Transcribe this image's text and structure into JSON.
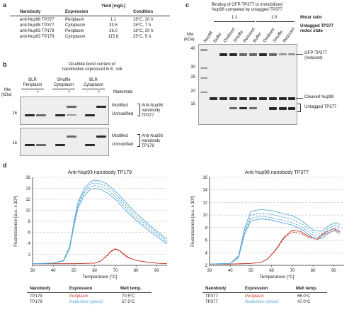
{
  "panel_a": {
    "label": "a",
    "headers": [
      "Nanobody",
      "Expression",
      "Yield [mg/L]",
      "Condition"
    ],
    "rows": [
      [
        "anti-Nup98 TP377",
        "Periplasm",
        "1.1",
        "18°C, 20 h"
      ],
      [
        "anti-Nup98 TP377",
        "Cytoplasm",
        "33.5",
        "25°C, 7 h"
      ],
      [
        "anti-Nup93 TP179",
        "Periplasm",
        "26.0",
        "18°C, 20 h"
      ],
      [
        "anti-Nup93 TP179",
        "Cytoplasm",
        "115.8",
        "25°C, 5 h"
      ]
    ]
  },
  "panel_b": {
    "label": "b",
    "title_line1": "Disulfide bond content of",
    "title_line2": "nanobodies expressed in E. coli",
    "groups": [
      {
        "line1": "BLR",
        "line2": "Periplasm"
      },
      {
        "line1": "SHuffle",
        "line2": "Cytoplasm"
      },
      {
        "line1": "BLR",
        "line2": "Cytoplasm"
      }
    ],
    "minus": "-",
    "plus": "+",
    "maleimide": "Maleimide",
    "mw_label": "Mw",
    "mw_unit": "(kDa)",
    "mw_marker_top": "16",
    "mw_marker_bottom": "16",
    "modified": "Modified",
    "unmodified": "Unmodified",
    "top_right_label": [
      "Anti-Nup98",
      "nanobody",
      "TP377"
    ],
    "bottom_right_label": [
      "Anti-Nup93",
      "nanobody",
      "TP179"
    ]
  },
  "panel_c": {
    "label": "c",
    "title_line1": "Binding of GFP-TP377 to immobilized",
    "title_line2": "Nup98 competed by untagged TP377",
    "ratio_1": "1:1",
    "ratio_2": "1:5",
    "molar_ratio": "Molar ratio",
    "untagged_state_line1": "Untagged TP377",
    "untagged_state_line2": "redox state",
    "lanes": [
      "Nup98",
      "Buffer",
      "Oxidized",
      "SHuffle",
      "Reduced",
      "Buffer",
      "Oxidized",
      "SHuffle",
      "Reduced"
    ],
    "mw_label": "Mw",
    "mw_unit": "(kDa)",
    "mw_markers": [
      "40",
      "30",
      "25",
      "20",
      "15"
    ],
    "band_gfp_line1": "GFP-TP377",
    "band_gfp_line2": "(reduced)",
    "band_nup98": "Cleaved Nup98",
    "band_untagged": "Untagged TP377"
  },
  "panel_d": {
    "label": "d",
    "left_table": {
      "headers": [
        "Nanobody",
        "Expression",
        "Melt temp."
      ],
      "rows": [
        {
          "nanobody": "TP179",
          "expression": "Periplasm",
          "melt": "70.5°C"
        },
        {
          "nanobody": "TP179",
          "expression": "Reductive cytosol",
          "melt": "57.5°C"
        }
      ]
    },
    "right_table": {
      "headers": [
        "Nanobody",
        "Expression",
        "Melt temp."
      ],
      "rows": [
        {
          "nanobody": "TP377",
          "expression": "Periplasm",
          "melt": "66.0°C"
        },
        {
          "nanobody": "TP377",
          "expression": "Reductive cytosol",
          "melt": "47.0°C"
        }
      ]
    }
  },
  "colors": {
    "periplasm": "#c0392b",
    "cytosol": "#5aa7d6"
  },
  "chart_data": [
    {
      "type": "line",
      "title": "Anti-Nup93 nanobody TP179",
      "xlabel": "Temperature [°C]",
      "ylabel": "Fluorescence [a.u. x 10³]",
      "xlim": [
        30,
        95
      ],
      "ylim": [
        0,
        16
      ],
      "xticks": [
        30,
        40,
        50,
        60,
        70,
        80,
        90
      ],
      "yticks": [
        2,
        4,
        6,
        8,
        10,
        12,
        14,
        16
      ],
      "grid": true,
      "series": [
        {
          "color": "#c0392b",
          "dashed": false,
          "x": [
            30,
            40,
            50,
            60,
            63,
            66,
            68,
            70,
            72,
            74,
            76,
            80,
            85,
            90,
            95
          ],
          "y": [
            0.3,
            0.3,
            0.3,
            0.4,
            0.8,
            1.8,
            2.6,
            3.0,
            2.7,
            2.1,
            1.5,
            0.9,
            0.6,
            0.4,
            0.3
          ]
        },
        {
          "color": "#c0392b",
          "dashed": true,
          "x": [
            30,
            40,
            50,
            60,
            63,
            66,
            68,
            70,
            72,
            74,
            76,
            80,
            85,
            90,
            95
          ],
          "y": [
            0.3,
            0.3,
            0.3,
            0.4,
            0.8,
            1.7,
            2.5,
            2.9,
            2.6,
            2.0,
            1.4,
            0.9,
            0.6,
            0.4,
            0.3
          ]
        },
        {
          "color": "#5aa7d6",
          "dashed": false,
          "x": [
            30,
            40,
            45,
            48,
            50,
            52,
            55,
            58,
            60,
            63,
            66,
            70,
            75,
            80,
            85,
            90,
            95
          ],
          "y": [
            0.3,
            0.4,
            0.9,
            3.5,
            8.0,
            11.5,
            14.0,
            15.2,
            15.5,
            15.3,
            14.8,
            13.5,
            11.5,
            9.5,
            7.8,
            6.2,
            4.8
          ]
        },
        {
          "color": "#5aa7d6",
          "dashed": true,
          "x": [
            30,
            40,
            45,
            48,
            50,
            52,
            55,
            58,
            60,
            63,
            66,
            70,
            75,
            80,
            85,
            90,
            95
          ],
          "y": [
            0.3,
            0.4,
            0.9,
            3.4,
            7.8,
            11.2,
            13.6,
            14.8,
            15.0,
            14.8,
            14.3,
            13.0,
            11.0,
            9.0,
            7.4,
            5.9,
            4.5
          ]
        },
        {
          "color": "#5aa7d6",
          "dashed": true,
          "x": [
            30,
            40,
            45,
            48,
            50,
            52,
            55,
            58,
            60,
            63,
            66,
            70,
            75,
            80,
            85,
            90,
            95
          ],
          "y": [
            0.3,
            0.4,
            0.9,
            3.3,
            7.5,
            10.8,
            13.2,
            14.3,
            14.5,
            14.3,
            13.8,
            12.5,
            10.5,
            8.6,
            7.0,
            5.6,
            4.2
          ]
        },
        {
          "color": "#5aa7d6",
          "dashed": false,
          "x": [
            30,
            40,
            45,
            48,
            50,
            52,
            55,
            58,
            60,
            63,
            66,
            70,
            75,
            80,
            85,
            90,
            95
          ],
          "y": [
            0.3,
            0.4,
            0.8,
            3.1,
            7.2,
            10.4,
            12.7,
            13.8,
            14.0,
            13.8,
            13.2,
            12.0,
            10.0,
            8.2,
            6.6,
            5.2,
            3.9
          ]
        }
      ]
    },
    {
      "type": "line",
      "title": "Anti-Nup98 nanobody TP377",
      "xlabel": "Temperature [°C]",
      "ylabel": "Fluorescence [a.u. x 10³]",
      "xlim": [
        30,
        95
      ],
      "ylim": [
        2,
        16
      ],
      "xticks": [
        30,
        40,
        50,
        60,
        70,
        80,
        90
      ],
      "yticks": [
        2,
        4,
        6,
        8,
        10,
        12,
        14,
        16
      ],
      "grid": true,
      "series": [
        {
          "color": "#c0392b",
          "dashed": false,
          "x": [
            30,
            40,
            50,
            55,
            58,
            62,
            66,
            70,
            74,
            78,
            82,
            86,
            90,
            93
          ],
          "y": [
            2.2,
            2.2,
            2.3,
            2.5,
            3.0,
            4.5,
            6.5,
            7.6,
            7.4,
            6.6,
            6.3,
            7.3,
            7.8,
            7.4
          ]
        },
        {
          "color": "#c0392b",
          "dashed": true,
          "x": [
            30,
            40,
            50,
            55,
            58,
            62,
            66,
            70,
            74,
            78,
            82,
            86,
            90,
            93
          ],
          "y": [
            2.2,
            2.2,
            2.3,
            2.5,
            3.0,
            4.4,
            6.3,
            7.3,
            7.1,
            6.4,
            6.1,
            7.0,
            7.5,
            7.1
          ]
        },
        {
          "color": "#5aa7d6",
          "dashed": false,
          "x": [
            30,
            40,
            44,
            47,
            50,
            55,
            60,
            65,
            70,
            75,
            80,
            84,
            88,
            91,
            93
          ],
          "y": [
            2.2,
            2.3,
            3.5,
            8.0,
            10.6,
            10.9,
            10.7,
            10.3,
            9.9,
            9.0,
            7.6,
            7.4,
            8.4,
            8.8,
            8.5
          ]
        },
        {
          "color": "#5aa7d6",
          "dashed": true,
          "x": [
            30,
            40,
            44,
            47,
            50,
            55,
            60,
            65,
            70,
            75,
            80,
            84,
            88,
            91,
            93
          ],
          "y": [
            2.2,
            2.3,
            3.4,
            7.6,
            10.0,
            10.3,
            10.1,
            9.7,
            9.3,
            8.5,
            7.2,
            7.0,
            8.0,
            8.4,
            8.1
          ]
        },
        {
          "color": "#5aa7d6",
          "dashed": true,
          "x": [
            30,
            40,
            44,
            47,
            50,
            55,
            60,
            65,
            70,
            75,
            80,
            84,
            88,
            91,
            93
          ],
          "y": [
            2.2,
            2.3,
            3.3,
            7.3,
            9.5,
            9.8,
            9.6,
            9.2,
            8.8,
            8.0,
            6.8,
            6.6,
            7.6,
            8.0,
            7.7
          ]
        },
        {
          "color": "#5aa7d6",
          "dashed": false,
          "x": [
            30,
            40,
            44,
            47,
            50,
            55,
            60,
            65,
            70,
            75,
            80,
            84,
            88,
            91,
            93
          ],
          "y": [
            2.2,
            2.3,
            3.2,
            7.0,
            9.1,
            9.4,
            9.2,
            8.8,
            8.4,
            7.6,
            6.4,
            6.2,
            7.2,
            7.6,
            7.3
          ]
        }
      ]
    }
  ]
}
